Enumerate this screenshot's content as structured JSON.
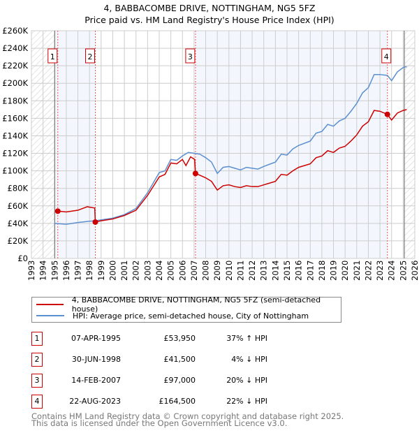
{
  "chart_data": {
    "type": "line",
    "title": "4, BABBACOMBE DRIVE, NOTTINGHAM, NG5 5FZ",
    "subtitle": "Price paid vs. HM Land Registry's House Price Index (HPI)",
    "xlim": [
      1993,
      2026
    ],
    "ylim": [
      0,
      260000
    ],
    "x_ticks": [
      "1993",
      "1994",
      "1995",
      "1996",
      "1997",
      "1998",
      "1999",
      "2000",
      "2001",
      "2002",
      "2003",
      "2004",
      "2005",
      "2006",
      "2007",
      "2008",
      "2009",
      "2010",
      "2011",
      "2012",
      "2013",
      "2014",
      "2015",
      "2016",
      "2017",
      "2018",
      "2019",
      "2020",
      "2021",
      "2022",
      "2023",
      "2024",
      "2025",
      "2026"
    ],
    "y_ticks": [
      {
        "v": 0,
        "l": "£0"
      },
      {
        "v": 20000,
        "l": "£20K"
      },
      {
        "v": 40000,
        "l": "£40K"
      },
      {
        "v": 60000,
        "l": "£60K"
      },
      {
        "v": 80000,
        "l": "£80K"
      },
      {
        "v": 100000,
        "l": "£100K"
      },
      {
        "v": 120000,
        "l": "£120K"
      },
      {
        "v": 140000,
        "l": "£140K"
      },
      {
        "v": 160000,
        "l": "£160K"
      },
      {
        "v": 180000,
        "l": "£180K"
      },
      {
        "v": 200000,
        "l": "£200K"
      },
      {
        "v": 220000,
        "l": "£220K"
      },
      {
        "v": 240000,
        "l": "£240K"
      },
      {
        "v": 260000,
        "l": "£260K"
      }
    ],
    "hatched_ranges": [
      [
        1993,
        1995
      ],
      [
        2025.1,
        2026
      ]
    ],
    "shaded_ranges": [
      [
        1995,
        1998.5
      ],
      [
        2007.12,
        2023.64
      ]
    ],
    "series": [
      {
        "name": "4, BABBACOMBE DRIVE, NOTTINGHAM, NG5 5FZ (semi-detached house)",
        "color": "#cc0000",
        "points": [
          [
            1995.27,
            54000
          ],
          [
            1996,
            53000
          ],
          [
            1997,
            55000
          ],
          [
            1997.8,
            59000
          ],
          [
            1998.45,
            57500
          ],
          [
            1998.5,
            41500
          ],
          [
            1999,
            43000
          ],
          [
            2000,
            45000
          ],
          [
            2001,
            49000
          ],
          [
            2002,
            55000
          ],
          [
            2003,
            72000
          ],
          [
            2004,
            93000
          ],
          [
            2004.5,
            96000
          ],
          [
            2005,
            109000
          ],
          [
            2005.5,
            108000
          ],
          [
            2006,
            113000
          ],
          [
            2006.3,
            106000
          ],
          [
            2006.7,
            116000
          ],
          [
            2007.05,
            113000
          ],
          [
            2007.12,
            97000
          ],
          [
            2007.5,
            95000
          ],
          [
            2008,
            92000
          ],
          [
            2008.5,
            88000
          ],
          [
            2009,
            78000
          ],
          [
            2009.5,
            83000
          ],
          [
            2010,
            84000
          ],
          [
            2010.5,
            82000
          ],
          [
            2011,
            81000
          ],
          [
            2011.5,
            83000
          ],
          [
            2012,
            82000
          ],
          [
            2012.5,
            82000
          ],
          [
            2013,
            84000
          ],
          [
            2014,
            88000
          ],
          [
            2014.5,
            96000
          ],
          [
            2015,
            95000
          ],
          [
            2015.5,
            100000
          ],
          [
            2016,
            104000
          ],
          [
            2017,
            108000
          ],
          [
            2017.5,
            115000
          ],
          [
            2018,
            117000
          ],
          [
            2018.5,
            123000
          ],
          [
            2019,
            121000
          ],
          [
            2019.5,
            126000
          ],
          [
            2020,
            128000
          ],
          [
            2020.5,
            134000
          ],
          [
            2021,
            141000
          ],
          [
            2021.5,
            151000
          ],
          [
            2022,
            156000
          ],
          [
            2022.5,
            169000
          ],
          [
            2023,
            168000
          ],
          [
            2023.64,
            164500
          ],
          [
            2024,
            158000
          ],
          [
            2024.5,
            166000
          ],
          [
            2025,
            169000
          ],
          [
            2025.3,
            170000
          ]
        ]
      },
      {
        "name": "HPI: Average price, semi-detached house, City of Nottingham",
        "color": "#5b8fd0",
        "points": [
          [
            1995,
            40000
          ],
          [
            1996,
            39000
          ],
          [
            1997,
            41000
          ],
          [
            1998,
            42500
          ],
          [
            1998.5,
            43000
          ],
          [
            1999,
            44000
          ],
          [
            2000,
            46000
          ],
          [
            2001,
            50000
          ],
          [
            2002,
            57000
          ],
          [
            2003,
            75000
          ],
          [
            2004,
            98000
          ],
          [
            2004.5,
            100000
          ],
          [
            2005,
            113000
          ],
          [
            2005.5,
            112000
          ],
          [
            2006,
            117000
          ],
          [
            2006.5,
            121000
          ],
          [
            2007,
            120000
          ],
          [
            2007.5,
            119000
          ],
          [
            2008,
            115000
          ],
          [
            2008.5,
            110000
          ],
          [
            2009,
            97000
          ],
          [
            2009.5,
            104000
          ],
          [
            2010,
            105000
          ],
          [
            2010.5,
            103000
          ],
          [
            2011,
            101000
          ],
          [
            2011.5,
            104000
          ],
          [
            2012,
            103000
          ],
          [
            2012.5,
            102000
          ],
          [
            2013,
            105000
          ],
          [
            2014,
            110000
          ],
          [
            2014.5,
            119000
          ],
          [
            2015,
            118000
          ],
          [
            2015.5,
            125000
          ],
          [
            2016,
            129000
          ],
          [
            2017,
            134000
          ],
          [
            2017.5,
            143000
          ],
          [
            2018,
            145000
          ],
          [
            2018.5,
            153000
          ],
          [
            2019,
            151000
          ],
          [
            2019.5,
            157000
          ],
          [
            2020,
            160000
          ],
          [
            2020.5,
            168000
          ],
          [
            2021,
            177000
          ],
          [
            2021.5,
            189000
          ],
          [
            2022,
            195000
          ],
          [
            2022.5,
            210000
          ],
          [
            2023,
            210000
          ],
          [
            2023.64,
            209000
          ],
          [
            2024,
            203000
          ],
          [
            2024.5,
            213000
          ],
          [
            2025,
            218000
          ],
          [
            2025.3,
            219000
          ]
        ]
      }
    ],
    "sales": [
      {
        "n": "1",
        "x": 1995.27,
        "price": 53950,
        "date": "07-APR-1995",
        "price_label": "£53,950",
        "hpi": "37% ↑ HPI"
      },
      {
        "n": "2",
        "x": 1998.5,
        "price": 41500,
        "date": "30-JUN-1998",
        "price_label": "£41,500",
        "hpi": "4% ↓ HPI"
      },
      {
        "n": "3",
        "x": 2007.12,
        "price": 97000,
        "date": "14-FEB-2007",
        "price_label": "£97,000",
        "hpi": "20% ↓ HPI"
      },
      {
        "n": "4",
        "x": 2023.64,
        "price": 164500,
        "date": "22-AUG-2023",
        "price_label": "£164,500",
        "hpi": "22% ↓ HPI"
      }
    ]
  },
  "footer": {
    "line1": "Contains HM Land Registry data © Crown copyright and database right 2025.",
    "line2": "This data is licensed under the Open Government Licence v3.0."
  }
}
